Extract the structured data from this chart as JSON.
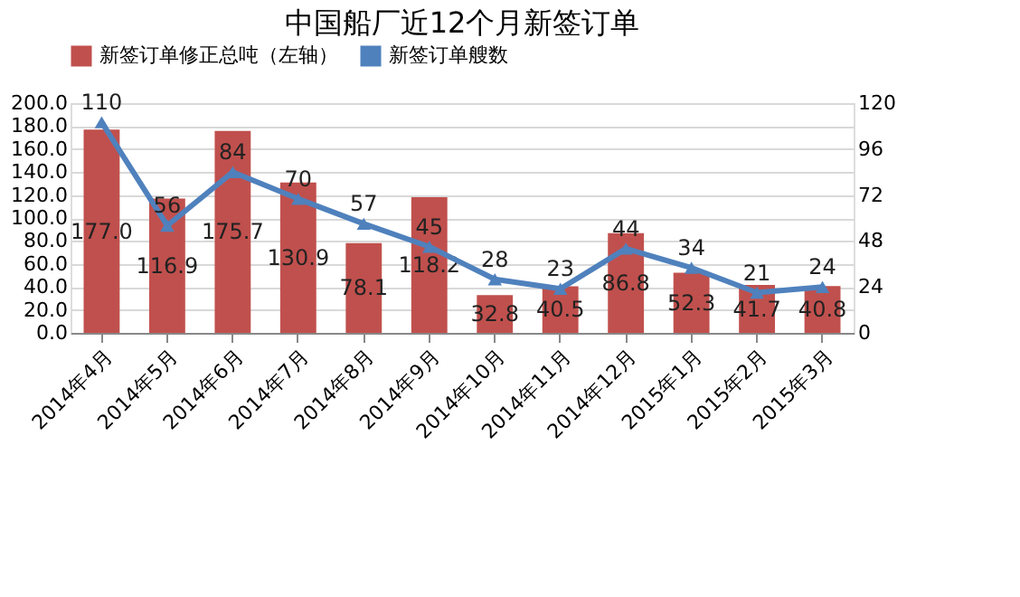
{
  "chart_data": {
    "type": "bar",
    "title": "中国船厂近12个月新签订单",
    "categories": [
      "2014年4月",
      "2014年5月",
      "2014年6月",
      "2014年7月",
      "2014年8月",
      "2014年9月",
      "2014年10月",
      "2014年11月",
      "2014年12月",
      "2015年1月",
      "2015年2月",
      "2015年3月"
    ],
    "series": [
      {
        "name": "新签订单修正总吨（左轴）",
        "color": "#c0504d",
        "values": [
          177.0,
          116.9,
          175.7,
          130.9,
          78.1,
          118.2,
          32.8,
          40.5,
          86.8,
          52.3,
          41.7,
          40.8
        ],
        "value_labels": [
          "177.0",
          "116.9",
          "175.7",
          "130.9",
          "78.1",
          "118.2",
          "32.8",
          "40.5",
          "86.8",
          "52.3",
          "41.7",
          "40.8"
        ]
      },
      {
        "name": "新签订单艘数",
        "type": "line",
        "axis": "y2",
        "color": "#4f81bd",
        "marker": "triangle",
        "values": [
          110,
          56,
          84,
          70,
          57,
          45,
          28,
          23,
          44,
          34,
          21,
          24
        ]
      }
    ],
    "ylim": [
      0,
      200
    ],
    "yticks": [
      {
        "value": 0,
        "label": "0.0"
      },
      {
        "value": 20,
        "label": "20.0"
      },
      {
        "value": 40,
        "label": "40.0"
      },
      {
        "value": 60,
        "label": "60.0"
      },
      {
        "value": 80,
        "label": "80.0"
      },
      {
        "value": 100,
        "label": "100.0"
      },
      {
        "value": 120,
        "label": "120.0"
      },
      {
        "value": 140,
        "label": "140.0"
      },
      {
        "value": 160,
        "label": "160.0"
      },
      {
        "value": 180,
        "label": "180.0"
      },
      {
        "value": 200,
        "label": "200.0"
      }
    ],
    "y2lim": [
      0,
      120
    ],
    "y2ticks": [
      0,
      24,
      48,
      72,
      96,
      120
    ],
    "data_labels": true,
    "grid": "y",
    "legend": "top"
  }
}
